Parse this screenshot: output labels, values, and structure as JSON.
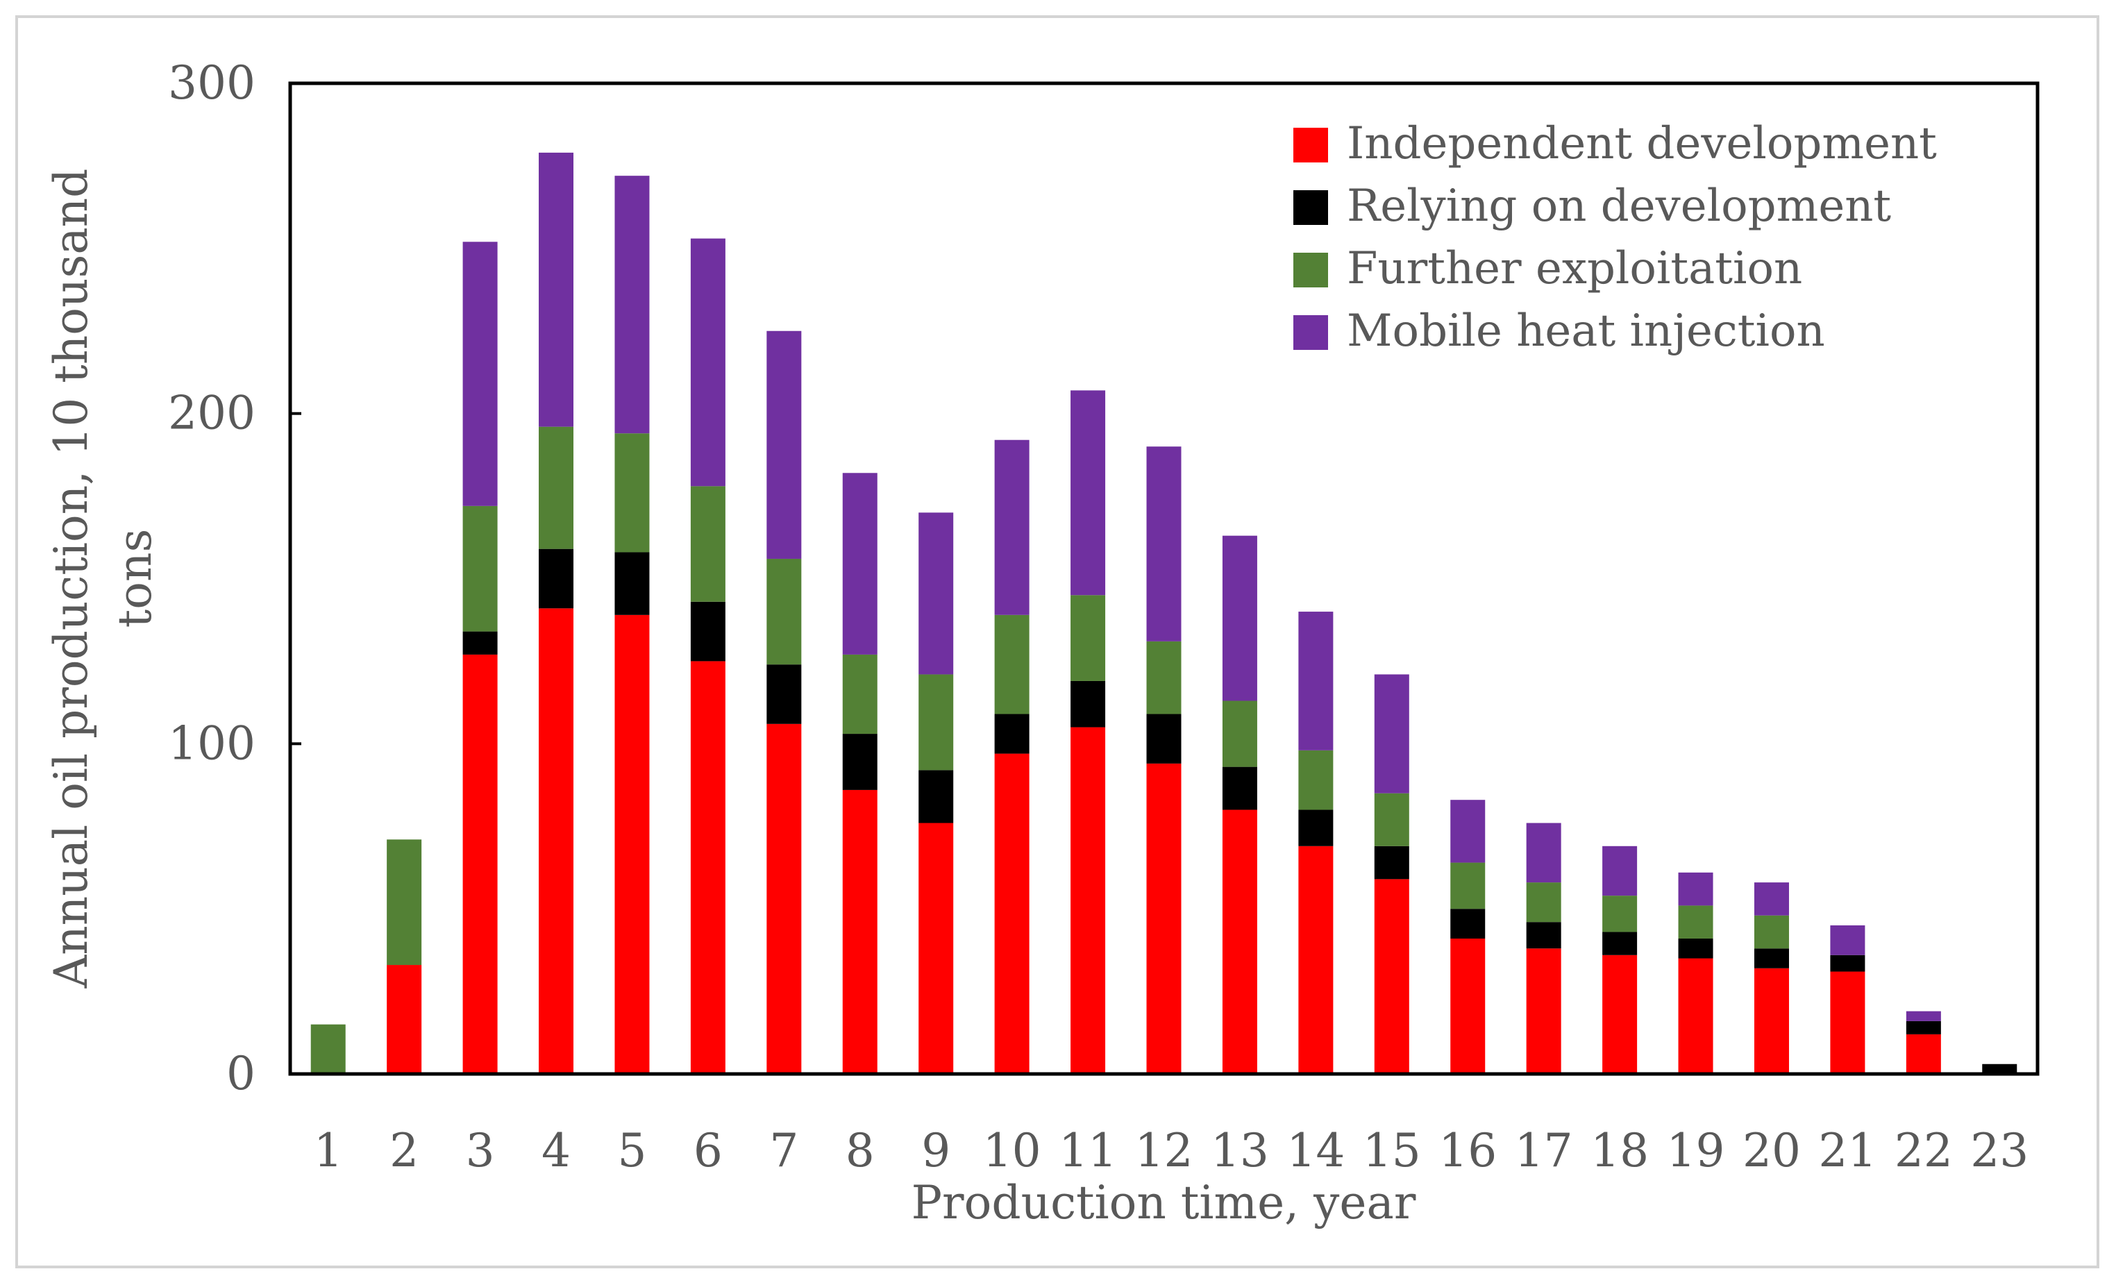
{
  "chart_data": {
    "type": "bar",
    "stacked": true,
    "title": "",
    "xlabel": "Production time, year",
    "ylabel_line1": "Annual oil production, 10 thousand",
    "ylabel_line2": "tons",
    "ylim": [
      0,
      300
    ],
    "yticks": [
      0,
      100,
      200,
      300
    ],
    "legend_position": "top-right",
    "categories": [
      "1",
      "2",
      "3",
      "4",
      "5",
      "6",
      "7",
      "8",
      "9",
      "10",
      "11",
      "12",
      "13",
      "14",
      "15",
      "16",
      "17",
      "18",
      "19",
      "20",
      "21",
      "22",
      "23"
    ],
    "series": [
      {
        "name": "Independent development",
        "color": "#ff0000",
        "values": [
          0,
          33,
          127,
          141,
          139,
          125,
          106,
          86,
          76,
          97,
          105,
          94,
          80,
          69,
          59,
          41,
          38,
          36,
          35,
          32,
          31,
          12,
          0
        ]
      },
      {
        "name": "Relying on development",
        "color": "#000000",
        "values": [
          0,
          0,
          7,
          18,
          19,
          18,
          18,
          17,
          16,
          12,
          14,
          15,
          13,
          11,
          10,
          9,
          8,
          7,
          6,
          6,
          5,
          4,
          3
        ]
      },
      {
        "name": "Further exploitation",
        "color": "#538135",
        "values": [
          15,
          38,
          38,
          37,
          36,
          35,
          32,
          24,
          29,
          30,
          26,
          22,
          20,
          18,
          16,
          14,
          12,
          11,
          10,
          10,
          0,
          0,
          0
        ]
      },
      {
        "name": "Mobile heat injection",
        "color": "#7030a0",
        "values": [
          0,
          0,
          80,
          83,
          78,
          75,
          69,
          55,
          49,
          53,
          62,
          59,
          50,
          42,
          36,
          19,
          18,
          15,
          10,
          10,
          9,
          3,
          0
        ]
      }
    ]
  }
}
